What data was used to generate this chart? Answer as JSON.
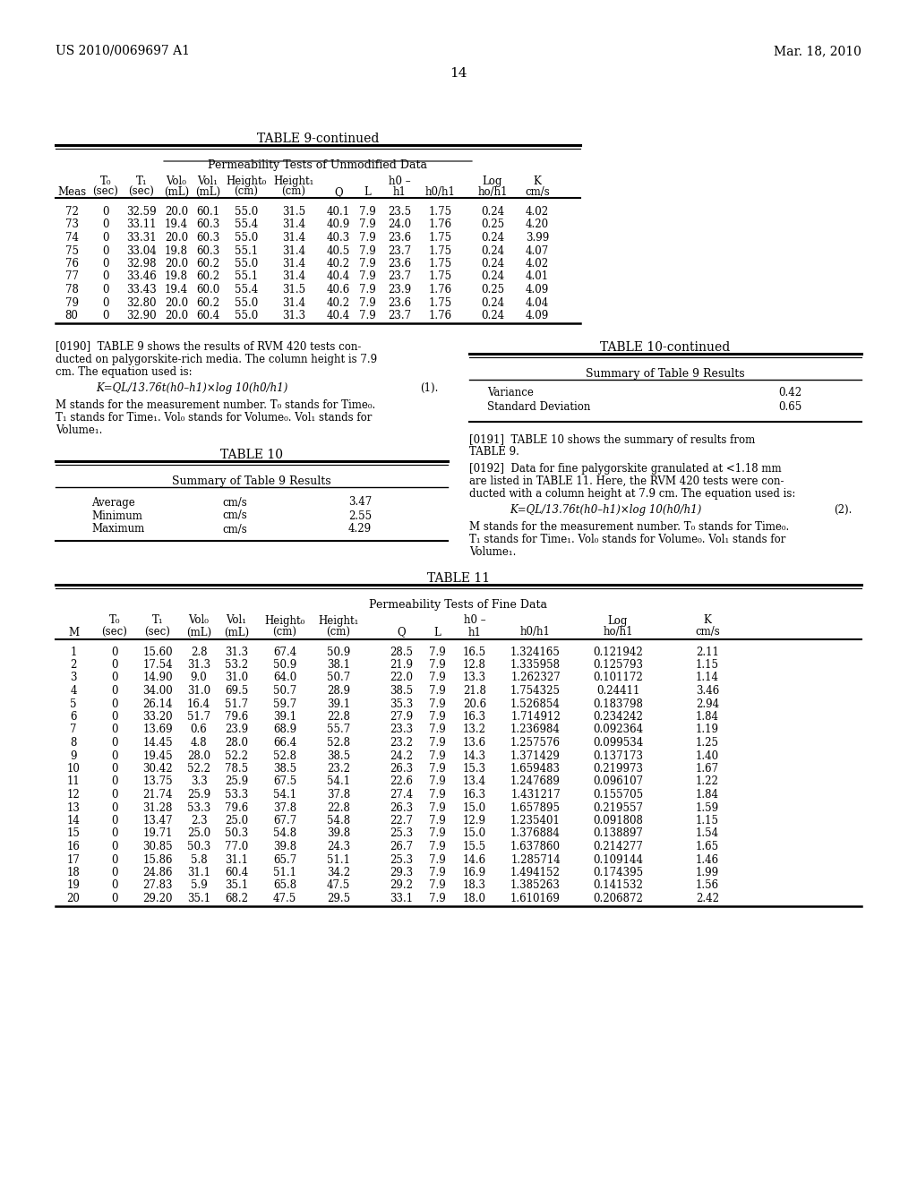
{
  "page_header_left": "US 2010/0069697 A1",
  "page_header_right": "Mar. 18, 2010",
  "page_number": "14",
  "bg_color": "#ffffff",
  "table9_title": "TABLE 9-continued",
  "table9_subtitle": "Permeability Tests of Unmodified Data",
  "table9_data": [
    [
      "72",
      "0",
      "32.59",
      "20.0",
      "60.1",
      "55.0",
      "31.5",
      "40.1",
      "7.9",
      "23.5",
      "1.75",
      "0.24",
      "4.02"
    ],
    [
      "73",
      "0",
      "33.11",
      "19.4",
      "60.3",
      "55.4",
      "31.4",
      "40.9",
      "7.9",
      "24.0",
      "1.76",
      "0.25",
      "4.20"
    ],
    [
      "74",
      "0",
      "33.31",
      "20.0",
      "60.3",
      "55.0",
      "31.4",
      "40.3",
      "7.9",
      "23.6",
      "1.75",
      "0.24",
      "3.99"
    ],
    [
      "75",
      "0",
      "33.04",
      "19.8",
      "60.3",
      "55.1",
      "31.4",
      "40.5",
      "7.9",
      "23.7",
      "1.75",
      "0.24",
      "4.07"
    ],
    [
      "76",
      "0",
      "32.98",
      "20.0",
      "60.2",
      "55.0",
      "31.4",
      "40.2",
      "7.9",
      "23.6",
      "1.75",
      "0.24",
      "4.02"
    ],
    [
      "77",
      "0",
      "33.46",
      "19.8",
      "60.2",
      "55.1",
      "31.4",
      "40.4",
      "7.9",
      "23.7",
      "1.75",
      "0.24",
      "4.01"
    ],
    [
      "78",
      "0",
      "33.43",
      "19.4",
      "60.0",
      "55.4",
      "31.5",
      "40.6",
      "7.9",
      "23.9",
      "1.76",
      "0.25",
      "4.09"
    ],
    [
      "79",
      "0",
      "32.80",
      "20.0",
      "60.2",
      "55.0",
      "31.4",
      "40.2",
      "7.9",
      "23.6",
      "1.75",
      "0.24",
      "4.04"
    ],
    [
      "80",
      "0",
      "32.90",
      "20.0",
      "60.4",
      "55.0",
      "31.3",
      "40.4",
      "7.9",
      "23.7",
      "1.76",
      "0.24",
      "4.09"
    ]
  ],
  "table10_title": "TABLE 10",
  "table10_subtitle": "Summary of Table 9 Results",
  "table10_data": [
    [
      "Average",
      "cm/s",
      "3.47"
    ],
    [
      "Minimum",
      "cm/s",
      "2.55"
    ],
    [
      "Maximum",
      "cm/s",
      "4.29"
    ]
  ],
  "table10cont_title": "TABLE 10-continued",
  "table10cont_subtitle": "Summary of Table 9 Results",
  "table10cont_data": [
    [
      "Variance",
      "0.42"
    ],
    [
      "Standard Deviation",
      "0.65"
    ]
  ],
  "table11_title": "TABLE 11",
  "table11_subtitle": "Permeability Tests of Fine Data",
  "table11_data": [
    [
      "1",
      "0",
      "15.60",
      "2.8",
      "31.3",
      "67.4",
      "50.9",
      "28.5",
      "7.9",
      "16.5",
      "1.324165",
      "0.121942",
      "2.11"
    ],
    [
      "2",
      "0",
      "17.54",
      "31.3",
      "53.2",
      "50.9",
      "38.1",
      "21.9",
      "7.9",
      "12.8",
      "1.335958",
      "0.125793",
      "1.15"
    ],
    [
      "3",
      "0",
      "14.90",
      "9.0",
      "31.0",
      "64.0",
      "50.7",
      "22.0",
      "7.9",
      "13.3",
      "1.262327",
      "0.101172",
      "1.14"
    ],
    [
      "4",
      "0",
      "34.00",
      "31.0",
      "69.5",
      "50.7",
      "28.9",
      "38.5",
      "7.9",
      "21.8",
      "1.754325",
      "0.24411",
      "3.46"
    ],
    [
      "5",
      "0",
      "26.14",
      "16.4",
      "51.7",
      "59.7",
      "39.1",
      "35.3",
      "7.9",
      "20.6",
      "1.526854",
      "0.183798",
      "2.94"
    ],
    [
      "6",
      "0",
      "33.20",
      "51.7",
      "79.6",
      "39.1",
      "22.8",
      "27.9",
      "7.9",
      "16.3",
      "1.714912",
      "0.234242",
      "1.84"
    ],
    [
      "7",
      "0",
      "13.69",
      "0.6",
      "23.9",
      "68.9",
      "55.7",
      "23.3",
      "7.9",
      "13.2",
      "1.236984",
      "0.092364",
      "1.19"
    ],
    [
      "8",
      "0",
      "14.45",
      "4.8",
      "28.0",
      "66.4",
      "52.8",
      "23.2",
      "7.9",
      "13.6",
      "1.257576",
      "0.099534",
      "1.25"
    ],
    [
      "9",
      "0",
      "19.45",
      "28.0",
      "52.2",
      "52.8",
      "38.5",
      "24.2",
      "7.9",
      "14.3",
      "1.371429",
      "0.137173",
      "1.40"
    ],
    [
      "10",
      "0",
      "30.42",
      "52.2",
      "78.5",
      "38.5",
      "23.2",
      "26.3",
      "7.9",
      "15.3",
      "1.659483",
      "0.219973",
      "1.67"
    ],
    [
      "11",
      "0",
      "13.75",
      "3.3",
      "25.9",
      "67.5",
      "54.1",
      "22.6",
      "7.9",
      "13.4",
      "1.247689",
      "0.096107",
      "1.22"
    ],
    [
      "12",
      "0",
      "21.74",
      "25.9",
      "53.3",
      "54.1",
      "37.8",
      "27.4",
      "7.9",
      "16.3",
      "1.431217",
      "0.155705",
      "1.84"
    ],
    [
      "13",
      "0",
      "31.28",
      "53.3",
      "79.6",
      "37.8",
      "22.8",
      "26.3",
      "7.9",
      "15.0",
      "1.657895",
      "0.219557",
      "1.59"
    ],
    [
      "14",
      "0",
      "13.47",
      "2.3",
      "25.0",
      "67.7",
      "54.8",
      "22.7",
      "7.9",
      "12.9",
      "1.235401",
      "0.091808",
      "1.15"
    ],
    [
      "15",
      "0",
      "19.71",
      "25.0",
      "50.3",
      "54.8",
      "39.8",
      "25.3",
      "7.9",
      "15.0",
      "1.376884",
      "0.138897",
      "1.54"
    ],
    [
      "16",
      "0",
      "30.85",
      "50.3",
      "77.0",
      "39.8",
      "24.3",
      "26.7",
      "7.9",
      "15.5",
      "1.637860",
      "0.214277",
      "1.65"
    ],
    [
      "17",
      "0",
      "15.86",
      "5.8",
      "31.1",
      "65.7",
      "51.1",
      "25.3",
      "7.9",
      "14.6",
      "1.285714",
      "0.109144",
      "1.46"
    ],
    [
      "18",
      "0",
      "24.86",
      "31.1",
      "60.4",
      "51.1",
      "34.2",
      "29.3",
      "7.9",
      "16.9",
      "1.494152",
      "0.174395",
      "1.99"
    ],
    [
      "19",
      "0",
      "27.83",
      "5.9",
      "35.1",
      "65.8",
      "47.5",
      "29.2",
      "7.9",
      "18.3",
      "1.385263",
      "0.141532",
      "1.56"
    ],
    [
      "20",
      "0",
      "29.20",
      "35.1",
      "68.2",
      "47.5",
      "29.5",
      "33.1",
      "7.9",
      "18.0",
      "1.610169",
      "0.206872",
      "2.42"
    ]
  ]
}
